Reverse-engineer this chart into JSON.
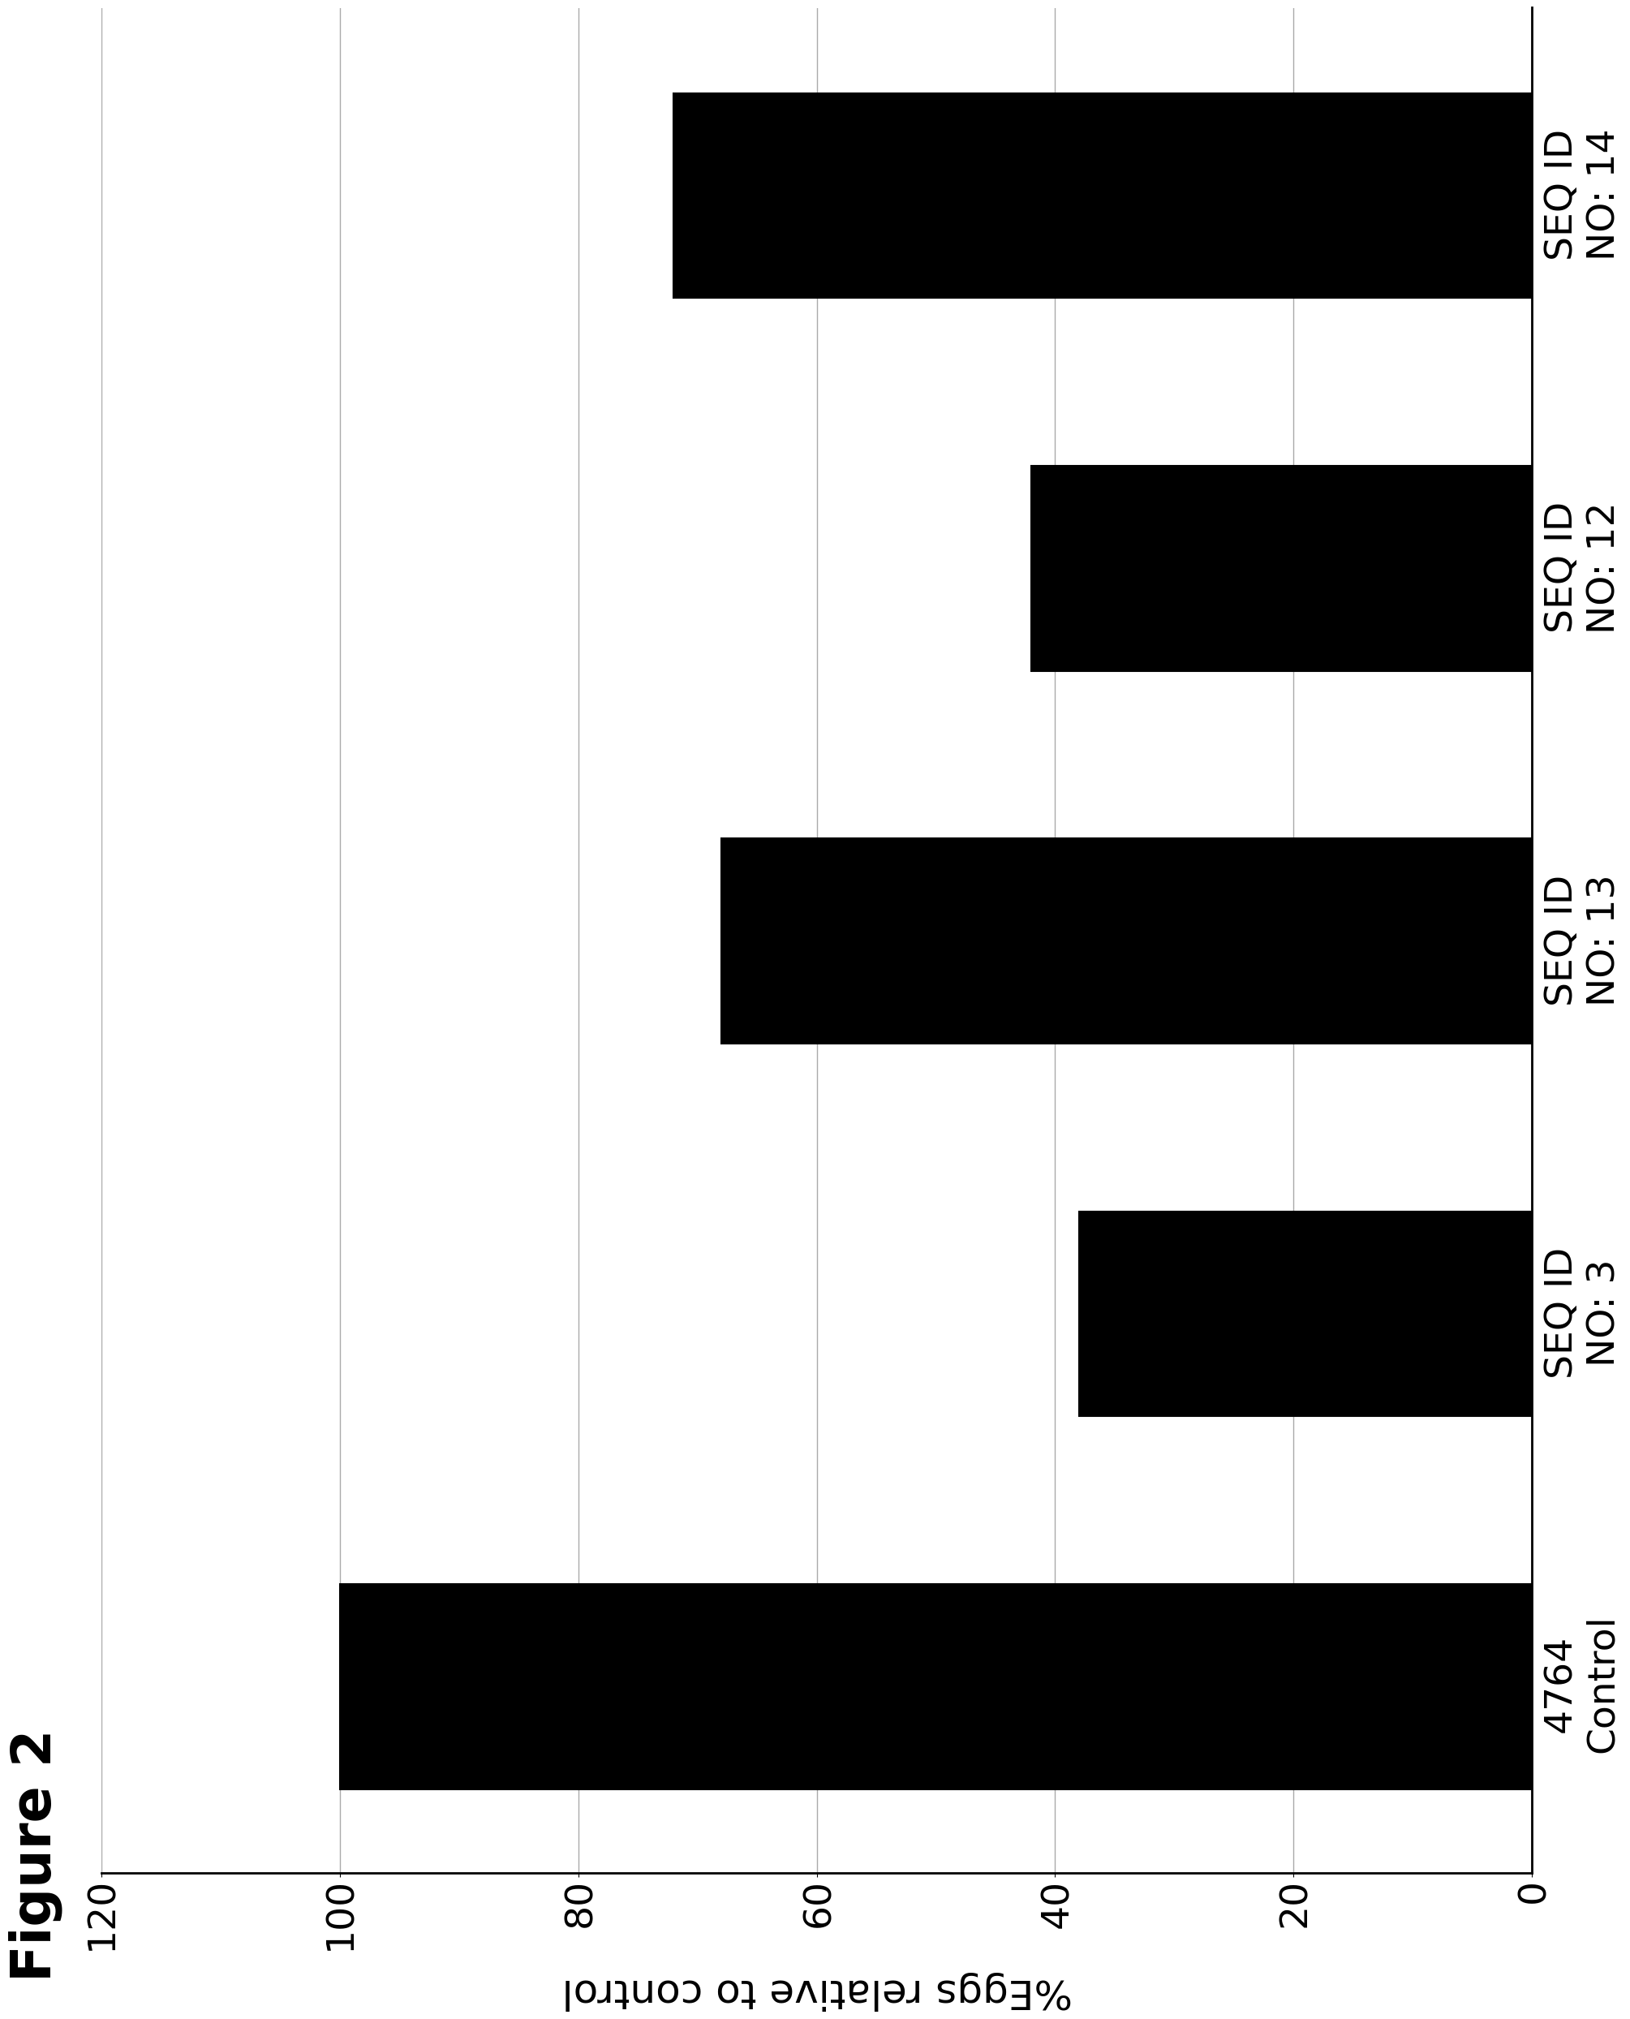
{
  "title": "Figure 2",
  "xlabel": "%Eggs relative to control",
  "categories": [
    "4764\nControl",
    "SEQ ID\nNO: 3",
    "SEQ ID\nNO: 13",
    "SEQ ID\nNO: 12",
    "SEQ ID\nNO: 14"
  ],
  "values": [
    100,
    38,
    68,
    42,
    72
  ],
  "bar_color": "#000000",
  "bar_edge_color": "#000000",
  "background_color": "#ffffff",
  "ylim": [
    0,
    120
  ],
  "yticks": [
    0,
    20,
    40,
    60,
    80,
    100,
    120
  ],
  "ytick_labels": [
    "0",
    "20",
    "40",
    "60",
    "80",
    "100",
    "120"
  ],
  "title_fontsize": 48,
  "axis_label_fontsize": 36,
  "tick_fontsize": 34,
  "category_fontsize": 34,
  "bar_width": 0.55,
  "figsize": [
    24.98,
    20.66
  ]
}
